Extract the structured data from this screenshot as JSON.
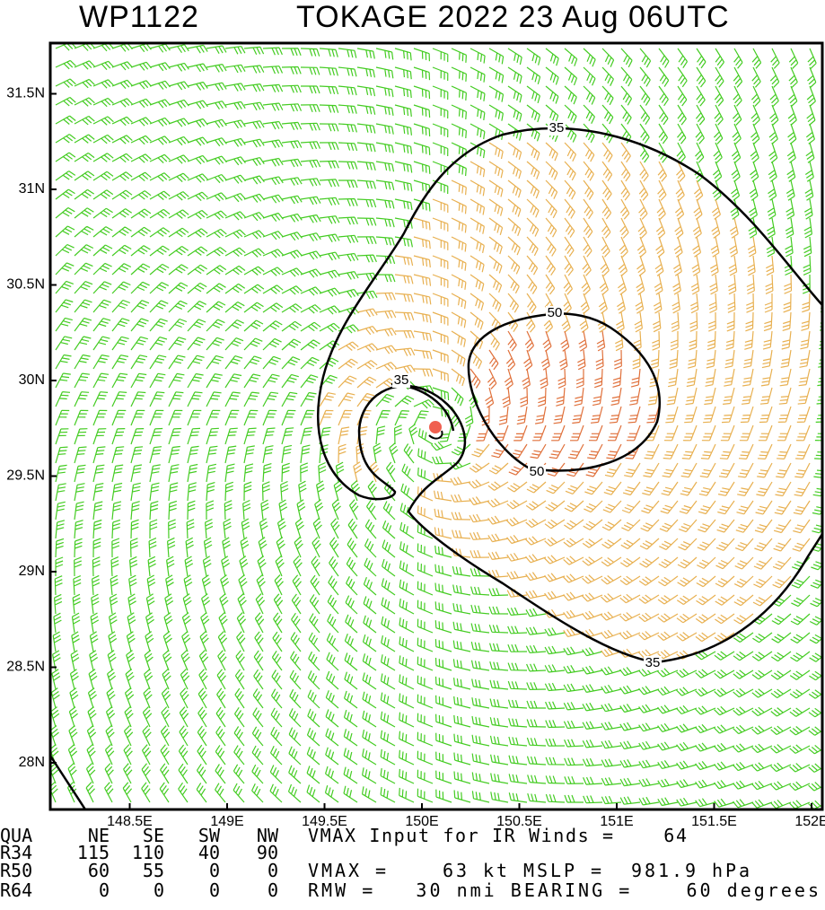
{
  "header": {
    "storm_id": "WP1122",
    "title": "TOKAGE 2022 23 Aug 06UTC"
  },
  "map": {
    "xticks": [
      {
        "value": 148.5,
        "label": "148.5E"
      },
      {
        "value": 149,
        "label": "149E"
      },
      {
        "value": 149.5,
        "label": "149.5E"
      },
      {
        "value": 150,
        "label": "150E"
      },
      {
        "value": 150.5,
        "label": "150.5E"
      },
      {
        "value": 151,
        "label": "151E"
      },
      {
        "value": 151.5,
        "label": "151.5E"
      },
      {
        "value": 152,
        "label": "152E"
      }
    ],
    "yticks": [
      {
        "value": 31.5,
        "label": "31.5N"
      },
      {
        "value": 31,
        "label": "31N"
      },
      {
        "value": 30.5,
        "label": "30.5N"
      },
      {
        "value": 30,
        "label": "30N"
      },
      {
        "value": 29.5,
        "label": "29.5N"
      },
      {
        "value": 29,
        "label": "29N"
      },
      {
        "value": 28.5,
        "label": "28.5N"
      },
      {
        "value": 28,
        "label": "28N"
      }
    ],
    "contour_labels": [
      "35",
      "50",
      "50",
      "35",
      "35"
    ]
  },
  "table": {
    "header": [
      "QUA",
      "NE",
      "SE",
      "SW",
      "NW"
    ],
    "rows": [
      [
        "R34",
        "115",
        "110",
        "40",
        "90"
      ],
      [
        "R50",
        "60",
        "55",
        "0",
        "0"
      ],
      [
        "R64",
        "0",
        "0",
        "0",
        "0"
      ]
    ],
    "info": [
      "VMAX Input for IR Winds =    64",
      "VMAX =    63 kt MSLP =  981.9 hPa",
      "RMW =   30 nmi BEARING =    60 degrees"
    ]
  }
}
